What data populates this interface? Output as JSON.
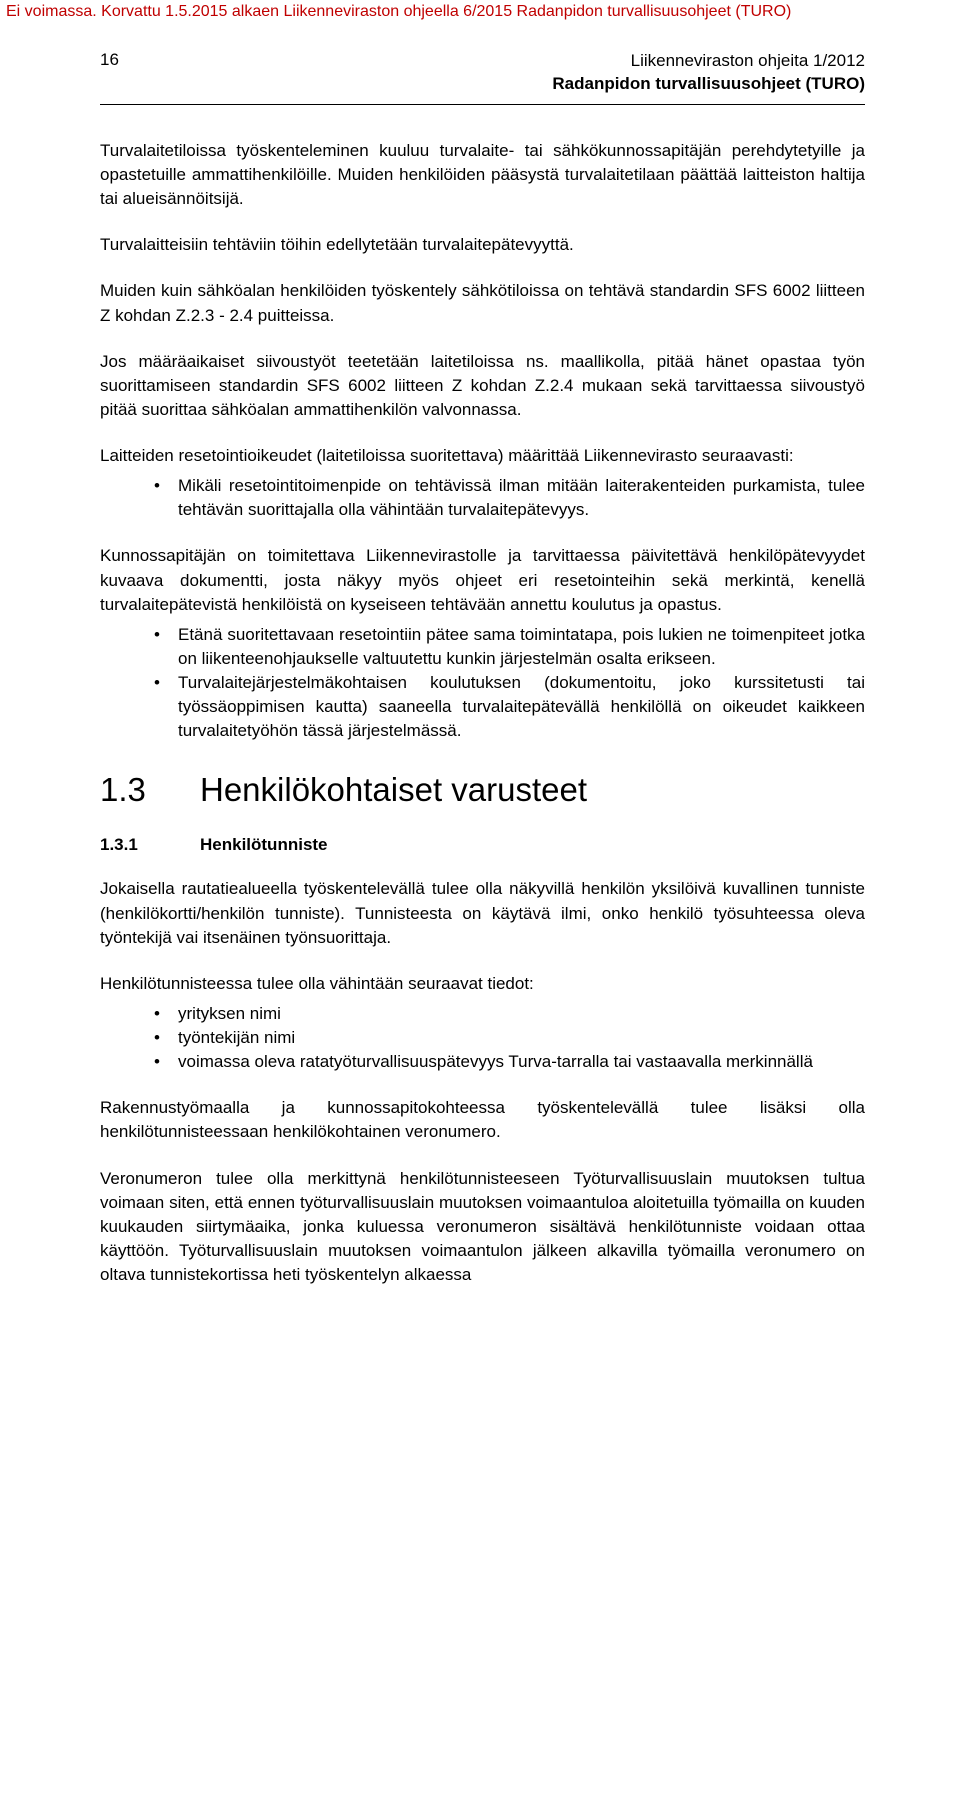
{
  "watermark": "Ei voimassa. Korvattu 1.5.2015 alkaen Liikenneviraston ohjeella 6/2015 Radanpidon turvallisuusohjeet (TURO)",
  "header": {
    "page_number": "16",
    "line1": "Liikenneviraston ohjeita 1/2012",
    "line2": "Radanpidon turvallisuusohjeet (TURO)"
  },
  "p1": "Turvalaitetiloissa työskenteleminen kuuluu turvalaite- tai sähkökunnossapitäjän perehdytetyille ja opastetuille ammattihenkilöille. Muiden henkilöiden pääsystä turvalaitetilaan päättää laitteiston haltija tai alueisännöitsijä.",
  "p2": "Turvalaitteisiin tehtäviin töihin edellytetään turvalaitepätevyyttä.",
  "p3": "Muiden kuin sähköalan henkilöiden työskentely sähkötiloissa on tehtävä standardin SFS 6002 liitteen Z kohdan Z.2.3 - 2.4 puitteissa.",
  "p4": "Jos määräaikaiset siivoustyöt teetetään laitetiloissa ns. maallikolla, pitää hänet opastaa työn suorittamiseen standardin SFS 6002 liitteen Z kohdan Z.2.4 mukaan sekä tarvittaessa siivoustyö pitää suorittaa sähköalan ammattihenkilön valvonnassa.",
  "p5": "Laitteiden resetointioikeudet (laitetiloissa suoritettava) määrittää Liikennevirasto seuraavasti:",
  "b5_1": "Mikäli resetointitoimenpide on tehtävissä ilman mitään laiterakenteiden purkamista, tulee tehtävän suorittajalla olla vähintään turvalaitepätevyys.",
  "p6": "Kunnossapitäjän on toimitettava Liikennevirastolle ja tarvittaessa päivitettävä henkilöpätevyydet kuvaava dokumentti, josta näkyy myös ohjeet eri resetointeihin sekä merkintä, kenellä turvalaitepätevistä henkilöistä on kyseiseen tehtävään annettu koulutus ja opastus.",
  "b6_1": "Etänä suoritettavaan resetointiin pätee sama toimintatapa, pois lukien ne toimenpiteet jotka on liikenteenohjaukselle valtuutettu kunkin järjestelmän osalta erikseen.",
  "b6_2": "Turvalaitejärjestelmäkohtaisen koulutuksen (dokumentoitu, joko kurssitetusti tai työssäoppimisen kautta) saaneella turvalaitepätevällä henkilöllä on oikeudet kaikkeen turvalaitetyöhön tässä järjestelmässä.",
  "h2": {
    "num": "1.3",
    "title": "Henkilökohtaiset varusteet"
  },
  "h3": {
    "num": "1.3.1",
    "title": "Henkilötunniste"
  },
  "p7": "Jokaisella rautatiealueella työskentelevällä tulee olla näkyvillä henkilön yksilöivä kuvallinen tunniste (henkilökortti/henkilön tunniste). Tunnisteesta on käytävä ilmi, onko henkilö työsuhteessa oleva työntekijä vai itsenäinen työnsuorittaja.",
  "p8": "Henkilötunnisteessa tulee olla vähintään seuraavat tiedot:",
  "b8_1": "yrityksen nimi",
  "b8_2": "työntekijän nimi",
  "b8_3": "voimassa oleva ratatyöturvallisuuspätevyys Turva-tarralla tai vastaavalla merkinnällä",
  "p9": "Rakennustyömaalla ja kunnossapitokohteessa työskentelevällä tulee lisäksi olla henkilötunnisteessaan henkilökohtainen veronumero.",
  "p10": "Veronumeron tulee olla merkittynä henkilötunnisteeseen Työturvallisuuslain muutoksen tultua voimaan siten, että ennen työturvallisuuslain muutoksen voimaantuloa aloitetuilla työmailla on kuuden kuukauden siirtymäaika, jonka kuluessa veronumeron sisältävä henkilötunniste voidaan ottaa käyttöön. Työturvallisuuslain muutoksen voimaantulon jälkeen alkavilla työmailla veronumero on oltava tunnistekortissa heti työskentelyn alkaessa"
}
